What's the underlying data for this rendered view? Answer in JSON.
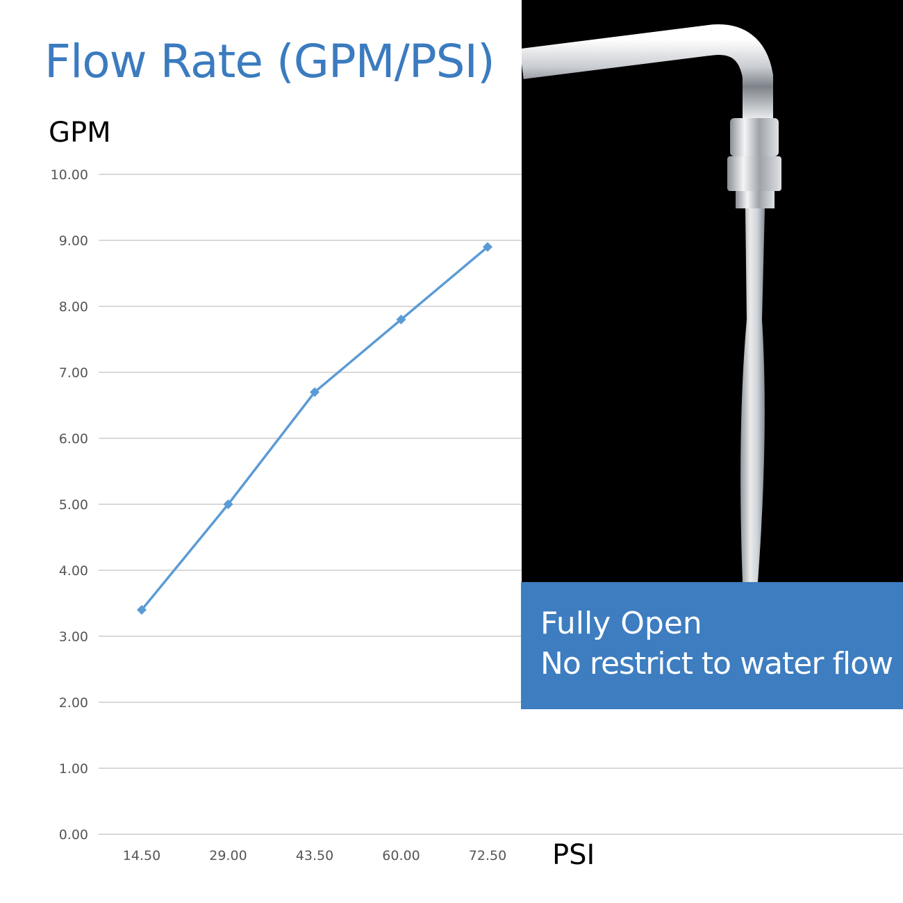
{
  "title": "Flow Rate (GPM/PSI)",
  "callout": {
    "line1": "Fully Open",
    "line2": "No restrict to water flow"
  },
  "photo": {
    "subject": "faucet-water-stream",
    "background": "#000000"
  },
  "colors": {
    "accent": "#3d7dc0",
    "series": "#5b9bd5",
    "grid": "#d9d9d9"
  },
  "chart_data": {
    "type": "line",
    "title": "Flow Rate (GPM/PSI)",
    "xlabel": "PSI",
    "ylabel": "GPM",
    "x": [
      "14.50",
      "29.00",
      "43.50",
      "60.00",
      "72.50"
    ],
    "series": [
      {
        "values": [
          3.4,
          5.0,
          6.7,
          7.8,
          8.9
        ]
      }
    ],
    "yticks": [
      "0.00",
      "1.00",
      "2.00",
      "3.00",
      "4.00",
      "5.00",
      "6.00",
      "7.00",
      "8.00",
      "9.00",
      "10.00"
    ],
    "ylim": [
      0,
      10
    ],
    "grid": true,
    "marker": "diamond"
  }
}
